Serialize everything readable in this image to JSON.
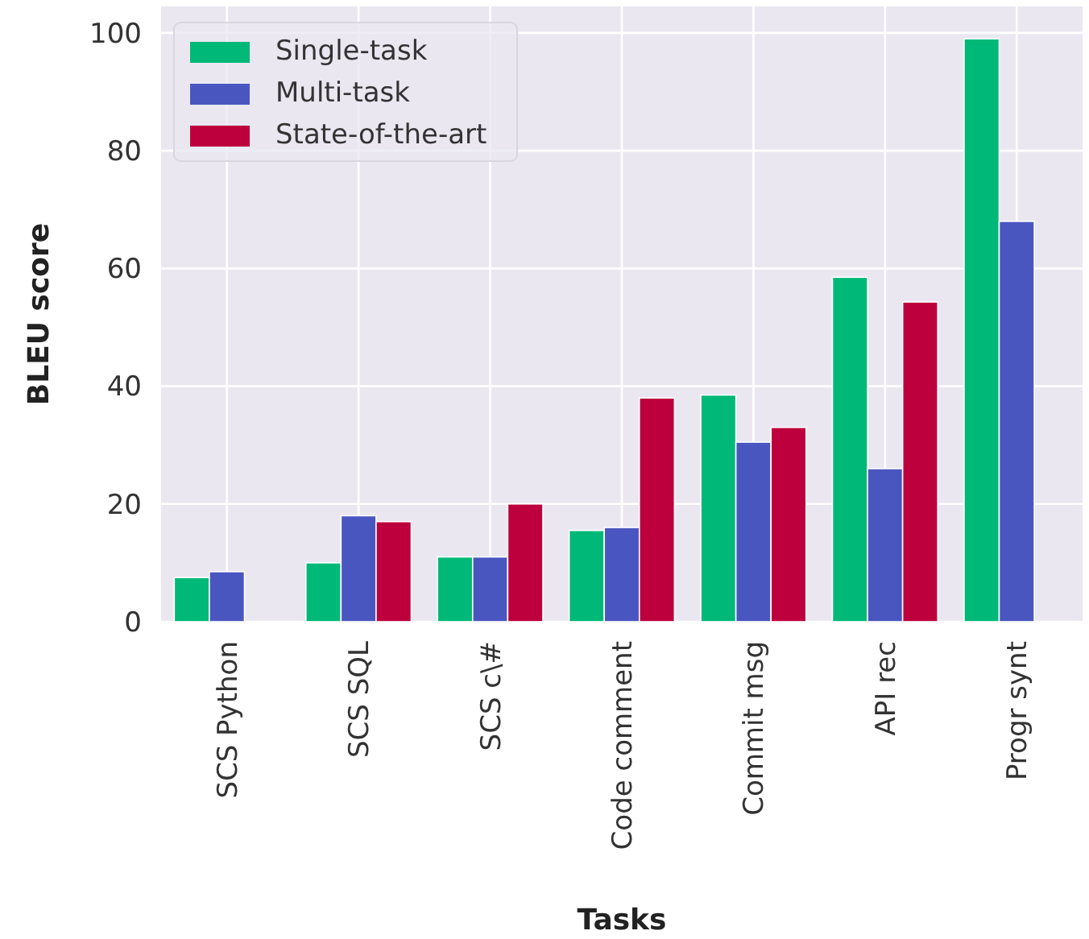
{
  "chart_data": {
    "type": "bar",
    "xlabel": "Tasks",
    "ylabel": "BLEU score",
    "categories": [
      "SCS Python",
      "SCS SQL",
      "SCS c\\#",
      "Code comment",
      "Commit msg",
      "API rec",
      "Progr synt"
    ],
    "series": [
      {
        "name": "Single-task",
        "color": "#00b877",
        "values": [
          7.5,
          10,
          11,
          15.5,
          38.5,
          58.5,
          99
        ]
      },
      {
        "name": "Multi-task",
        "color": "#4a56c0",
        "values": [
          8.5,
          18,
          11,
          16,
          30.5,
          26,
          68
        ]
      },
      {
        "name": "State-of-the-art",
        "color": "#bd003d",
        "values": [
          null,
          17,
          20,
          38,
          33,
          54.3,
          null
        ]
      }
    ],
    "ylim": [
      0,
      104.5
    ],
    "yticks": [
      0,
      20,
      40,
      60,
      80,
      100
    ],
    "grid": true,
    "legend": "top left"
  }
}
